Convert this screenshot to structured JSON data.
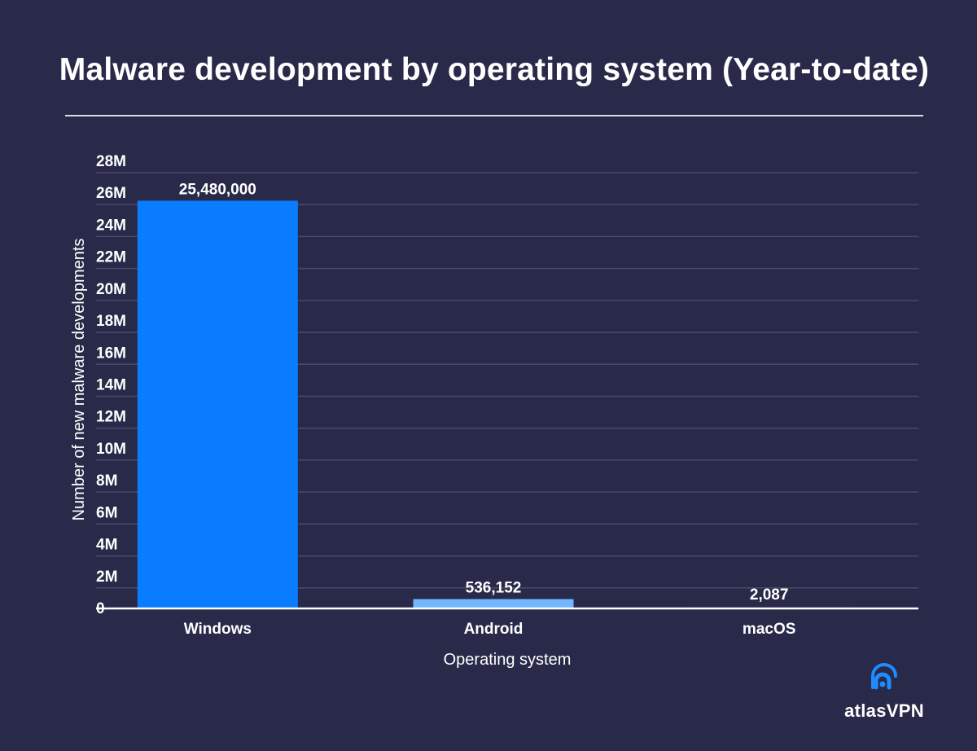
{
  "chart_data": {
    "type": "bar",
    "title": "Malware development by operating system (Year-to-date)",
    "xlabel": "Operating system",
    "ylabel": "Number of new malware developments",
    "categories": [
      "Windows",
      "Android",
      "macOS"
    ],
    "values": [
      25480000,
      536152,
      2087
    ],
    "value_labels": [
      "25,480,000",
      "536,152",
      "2,087"
    ],
    "ylim": [
      0,
      28000000
    ],
    "yticks": [
      0,
      2000000,
      4000000,
      6000000,
      8000000,
      10000000,
      12000000,
      14000000,
      16000000,
      18000000,
      20000000,
      22000000,
      24000000,
      26000000,
      28000000
    ],
    "ytick_labels": [
      "0",
      "2M",
      "4M",
      "6M",
      "8M",
      "10M",
      "12M",
      "14M",
      "16M",
      "18M",
      "20M",
      "22M",
      "24M",
      "26M",
      "28M"
    ],
    "bar_colors": [
      "#0a7cff",
      "#73b6ff",
      "#73b6ff"
    ],
    "grid": true,
    "legend": "none"
  },
  "colors": {
    "background": "#29294a",
    "gridline": "#4a4a68",
    "axis": "#ffffff",
    "text": "#ffffff"
  },
  "brand": {
    "logo_text": "atlasVPN",
    "logo_icon": "atlasvpn-signal-icon",
    "logo_color": "#1e8bff"
  }
}
